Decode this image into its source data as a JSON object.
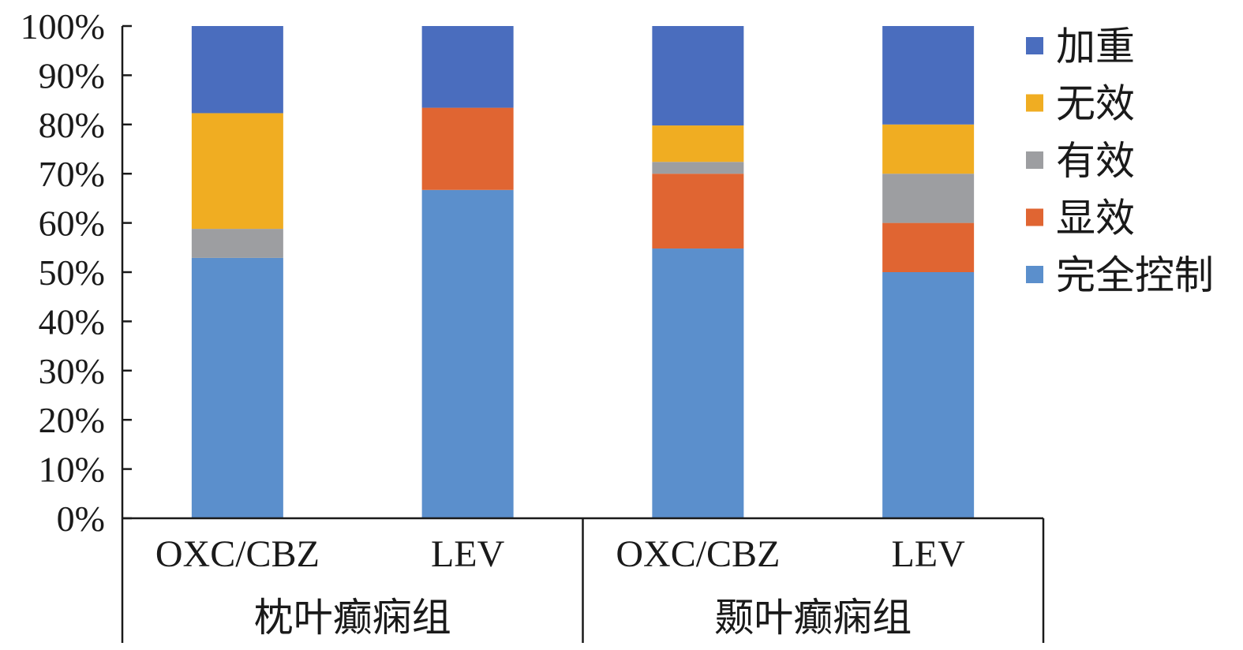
{
  "chart_data": {
    "type": "bar",
    "stacked": true,
    "percent_stacked": true,
    "groups": [
      {
        "label": "枕叶癫痫组",
        "categories": [
          "OXC/CBZ",
          "LEV"
        ]
      },
      {
        "label": "颞叶癫痫组",
        "categories": [
          "OXC/CBZ",
          "LEV"
        ]
      }
    ],
    "categories": [
      "OXC/CBZ",
      "LEV",
      "OXC/CBZ",
      "LEV"
    ],
    "series": [
      {
        "name": "完全控制",
        "color": "#5B8FCC",
        "values": [
          52.9,
          66.7,
          54.8,
          50.0
        ]
      },
      {
        "name": "显效",
        "color": "#E06532",
        "values": [
          0.0,
          16.7,
          15.2,
          10.0
        ]
      },
      {
        "name": "有效",
        "color": "#9D9EA1",
        "values": [
          5.9,
          0.0,
          2.4,
          10.0
        ]
      },
      {
        "name": "无效",
        "color": "#F0AD22",
        "values": [
          23.5,
          0.0,
          7.4,
          10.0
        ]
      },
      {
        "name": "加重",
        "color": "#4A6DBE",
        "values": [
          17.7,
          16.6,
          20.2,
          20.0
        ]
      }
    ],
    "legend_order": [
      "加重",
      "无效",
      "有效",
      "显效",
      "完全控制"
    ],
    "legend_position": "right",
    "ylim": [
      0,
      100
    ],
    "yticks": [
      "0%",
      "10%",
      "20%",
      "30%",
      "40%",
      "50%",
      "60%",
      "70%",
      "80%",
      "90%",
      "100%"
    ],
    "grid": false
  }
}
